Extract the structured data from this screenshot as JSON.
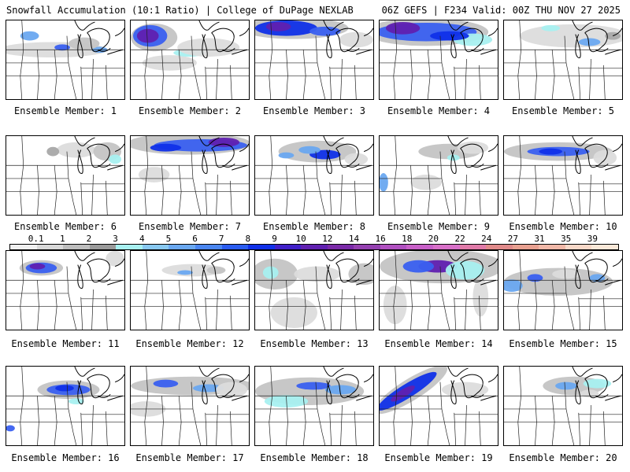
{
  "header": {
    "left": "Snowfall Accumulation (10:1 Ratio) | College of DuPage NEXLAB",
    "right": "06Z GEFS | F234 Valid: 00Z THU NOV 27 2025"
  },
  "colorbar": {
    "labels": [
      "0.1",
      "1",
      "2",
      "3",
      "4",
      "5",
      "6",
      "7",
      "8",
      "9",
      "10",
      "12",
      "14",
      "16",
      "18",
      "20",
      "22",
      "24",
      "27",
      "31",
      "35",
      "39"
    ],
    "colors": [
      "#f0f0f0",
      "#d8d8d8",
      "#bdbdbd",
      "#9a9a9a",
      "#a8f0f0",
      "#88c8f0",
      "#6aa8f0",
      "#4a86f0",
      "#2a5cf0",
      "#1030e8",
      "#4020c8",
      "#6020b0",
      "#7a2aa8",
      "#9440b0",
      "#b050c0",
      "#c860c8",
      "#d870c8",
      "#e07aa8",
      "#e08a8a",
      "#e8a090",
      "#f0b8a8",
      "#f8d8c8",
      "#fae8d8"
    ]
  },
  "members": [
    {
      "label": "Ensemble Member: 1"
    },
    {
      "label": "Ensemble Member: 2"
    },
    {
      "label": "Ensemble Member: 3"
    },
    {
      "label": "Ensemble Member: 4"
    },
    {
      "label": "Ensemble Member: 5"
    },
    {
      "label": "Ensemble Member: 6"
    },
    {
      "label": "Ensemble Member: 7"
    },
    {
      "label": "Ensemble Member: 8"
    },
    {
      "label": "Ensemble Member: 9"
    },
    {
      "label": "Ensemble Member: 10"
    },
    {
      "label": "Ensemble Member: 11"
    },
    {
      "label": "Ensemble Member: 12"
    },
    {
      "label": "Ensemble Member: 13"
    },
    {
      "label": "Ensemble Member: 14"
    },
    {
      "label": "Ensemble Member: 15"
    },
    {
      "label": "Ensemble Member: 16"
    },
    {
      "label": "Ensemble Member: 17"
    },
    {
      "label": "Ensemble Member: 18"
    },
    {
      "label": "Ensemble Member: 19"
    },
    {
      "label": "Ensemble Member: 20"
    }
  ]
}
